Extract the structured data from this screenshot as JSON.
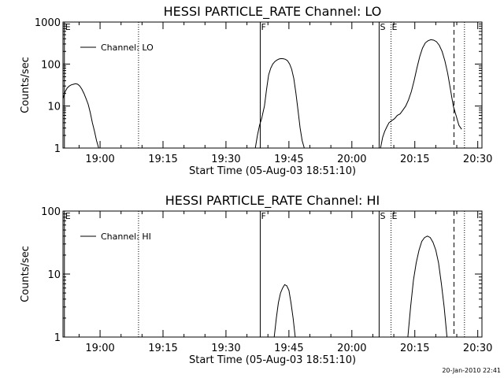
{
  "footer": {
    "timestamp": "20-Jan-2010 22:41"
  },
  "chart_data": [
    {
      "type": "line",
      "title": "HESSI PARTICLE_RATE Channel: LO",
      "xlabel": "Start Time (05-Aug-03 18:51:10)",
      "ylabel": "Counts/sec",
      "yscale": "log",
      "xlim": [
        "18:51:10",
        "20:31:00"
      ],
      "ylim": [
        1,
        1000
      ],
      "xticks": [
        "19:00",
        "19:15",
        "19:30",
        "19:45",
        "20:00",
        "20:15",
        "20:30"
      ],
      "yticks": [
        "1",
        "10",
        "100",
        "1000"
      ],
      "legend": {
        "position": "top-left",
        "entries": [
          "Channel: LO"
        ]
      },
      "markers": [
        {
          "time": "18:51:30",
          "style": "solid",
          "label": "E"
        },
        {
          "time": "19:09:10",
          "style": "dotted",
          "label": ""
        },
        {
          "time": "19:38:10",
          "style": "solid",
          "label": "F"
        },
        {
          "time": "20:06:30",
          "style": "solid",
          "label": "S"
        },
        {
          "time": "20:09:20",
          "style": "dotted",
          "label": "E"
        },
        {
          "time": "20:24:20",
          "style": "dashed",
          "label": ""
        },
        {
          "time": "20:26:50",
          "style": "dotted",
          "label": ""
        }
      ],
      "series": [
        {
          "name": "Channel: LO",
          "segments": [
            [
              [
                "18:51:10",
                15
              ],
              [
                "18:51:40",
                22
              ],
              [
                "18:52:10",
                27
              ],
              [
                "18:52:40",
                30
              ],
              [
                "18:53:10",
                32
              ],
              [
                "18:53:40",
                33
              ],
              [
                "18:54:10",
                34
              ],
              [
                "18:54:40",
                33
              ],
              [
                "18:55:10",
                30
              ],
              [
                "18:55:40",
                25
              ],
              [
                "18:56:10",
                20
              ],
              [
                "18:56:40",
                15
              ],
              [
                "18:57:10",
                11
              ],
              [
                "18:57:40",
                7
              ],
              [
                "18:58:10",
                4
              ],
              [
                "18:58:40",
                2.5
              ],
              [
                "18:59:10",
                1.5
              ],
              [
                "18:59:40",
                1
              ]
            ],
            [
              [
                "19:37:00",
                1
              ],
              [
                "19:37:30",
                2
              ],
              [
                "19:38:00",
                3.5
              ],
              [
                "19:38:30",
                5
              ],
              [
                "19:39:10",
                10
              ],
              [
                "19:39:40",
                25
              ],
              [
                "19:40:10",
                55
              ],
              [
                "19:40:40",
                80
              ],
              [
                "19:41:10",
                100
              ],
              [
                "19:41:40",
                115
              ],
              [
                "19:42:10",
                125
              ],
              [
                "19:42:40",
                132
              ],
              [
                "19:43:10",
                135
              ],
              [
                "19:43:40",
                134
              ],
              [
                "19:44:10",
                130
              ],
              [
                "19:44:40",
                120
              ],
              [
                "19:45:10",
                100
              ],
              [
                "19:45:40",
                75
              ],
              [
                "19:46:10",
                45
              ],
              [
                "19:46:40",
                20
              ],
              [
                "19:47:10",
                8
              ],
              [
                "19:47:40",
                3
              ],
              [
                "19:48:10",
                1.5
              ],
              [
                "19:48:40",
                1
              ]
            ],
            [
              [
                "20:06:50",
                1
              ],
              [
                "20:07:20",
                1.8
              ],
              [
                "20:07:50",
                2.5
              ],
              [
                "20:08:20",
                3.2
              ],
              [
                "20:08:50",
                4
              ],
              [
                "20:09:30",
                4.5
              ],
              [
                "20:10:10",
                5
              ],
              [
                "20:10:50",
                6
              ],
              [
                "20:11:30",
                6.5
              ],
              [
                "20:12:10",
                8
              ],
              [
                "20:12:50",
                10
              ],
              [
                "20:13:30",
                14
              ],
              [
                "20:14:10",
                22
              ],
              [
                "20:14:50",
                40
              ],
              [
                "20:15:30",
                80
              ],
              [
                "20:16:10",
                150
              ],
              [
                "20:16:50",
                240
              ],
              [
                "20:17:30",
                320
              ],
              [
                "20:18:10",
                360
              ],
              [
                "20:18:50",
                380
              ],
              [
                "20:19:30",
                370
              ],
              [
                "20:20:10",
                340
              ],
              [
                "20:20:50",
                280
              ],
              [
                "20:21:30",
                200
              ],
              [
                "20:22:10",
                120
              ],
              [
                "20:22:50",
                60
              ],
              [
                "20:23:30",
                25
              ],
              [
                "20:24:10",
                10
              ],
              [
                "20:24:50",
                6
              ],
              [
                "20:25:30",
                3.5
              ],
              [
                "20:26:10",
                2.8
              ]
            ]
          ]
        }
      ]
    },
    {
      "type": "line",
      "title": "HESSI PARTICLE_RATE Channel: HI",
      "xlabel": "Start Time (05-Aug-03 18:51:10)",
      "ylabel": "Counts/sec",
      "yscale": "log",
      "xlim": [
        "18:51:10",
        "20:31:00"
      ],
      "ylim": [
        1,
        100
      ],
      "xticks": [
        "19:00",
        "19:15",
        "19:30",
        "19:45",
        "20:00",
        "20:15",
        "20:30"
      ],
      "yticks": [
        "1",
        "10",
        "100"
      ],
      "legend": {
        "position": "top-left",
        "entries": [
          "Channel: HI"
        ]
      },
      "markers": [
        {
          "time": "18:51:30",
          "style": "solid",
          "label": "E"
        },
        {
          "time": "19:09:10",
          "style": "dotted",
          "label": ""
        },
        {
          "time": "19:38:10",
          "style": "solid",
          "label": "F"
        },
        {
          "time": "20:06:30",
          "style": "solid",
          "label": "S"
        },
        {
          "time": "20:09:20",
          "style": "dotted",
          "label": "E"
        },
        {
          "time": "20:24:20",
          "style": "dashed",
          "label": ""
        },
        {
          "time": "20:26:50",
          "style": "dotted",
          "label": ""
        }
      ],
      "series": [
        {
          "name": "Channel: HI",
          "segments": [
            [
              [
                "19:41:30",
                1
              ],
              [
                "19:42:00",
                2
              ],
              [
                "19:42:30",
                3.5
              ],
              [
                "19:43:00",
                5
              ],
              [
                "19:43:30",
                6
              ],
              [
                "19:44:00",
                6.8
              ],
              [
                "19:44:30",
                6.5
              ],
              [
                "19:45:00",
                5.5
              ],
              [
                "19:45:30",
                3.5
              ],
              [
                "19:46:00",
                2
              ],
              [
                "19:46:30",
                1
              ]
            ],
            [
              [
                "20:13:20",
                1
              ],
              [
                "20:14:00",
                3
              ],
              [
                "20:14:40",
                8
              ],
              [
                "20:15:20",
                15
              ],
              [
                "20:16:00",
                24
              ],
              [
                "20:16:40",
                33
              ],
              [
                "20:17:20",
                38
              ],
              [
                "20:18:00",
                40
              ],
              [
                "20:18:40",
                38
              ],
              [
                "20:19:20",
                32
              ],
              [
                "20:20:00",
                24
              ],
              [
                "20:20:40",
                15
              ],
              [
                "20:21:20",
                7
              ],
              [
                "20:22:00",
                3
              ],
              [
                "20:22:40",
                1
              ]
            ]
          ]
        }
      ]
    }
  ]
}
